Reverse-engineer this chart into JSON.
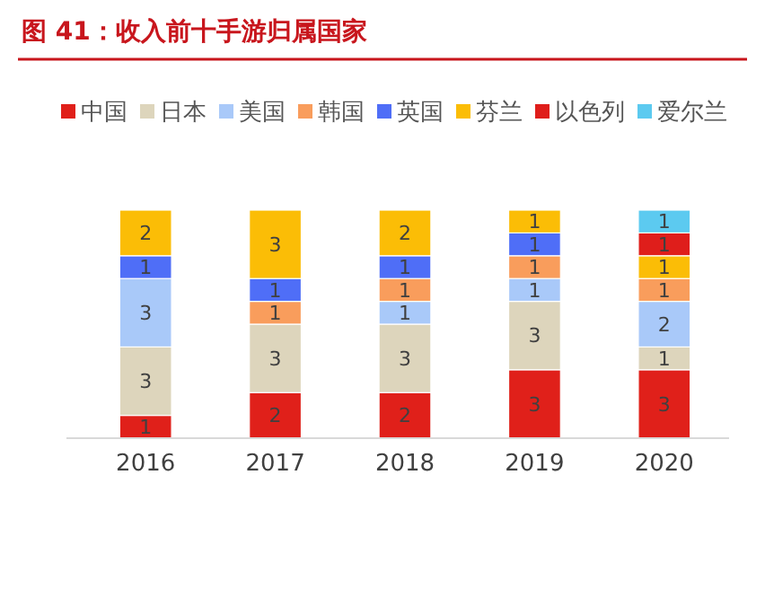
{
  "chart_data": {
    "type": "bar",
    "title": "图 41：收入前十手游归属国家",
    "stacked": true,
    "data_labels": true,
    "legend": "top",
    "grid": false,
    "categories": [
      "2016",
      "2017",
      "2018",
      "2019",
      "2020"
    ],
    "series": [
      {
        "name": "中国",
        "color": "#e0201a",
        "values": [
          1,
          2,
          2,
          3,
          3
        ]
      },
      {
        "name": "日本",
        "color": "#ddd5bc",
        "values": [
          3,
          3,
          3,
          3,
          1
        ]
      },
      {
        "name": "美国",
        "color": "#a9c9f9",
        "values": [
          3,
          null,
          1,
          1,
          2
        ]
      },
      {
        "name": "韩国",
        "color": "#f99d5c",
        "values": [
          null,
          1,
          1,
          1,
          1
        ]
      },
      {
        "name": "英国",
        "color": "#4f6ef7",
        "values": [
          1,
          1,
          1,
          1,
          null
        ]
      },
      {
        "name": "芬兰",
        "color": "#fbbd06",
        "values": [
          2,
          3,
          2,
          1,
          1
        ]
      },
      {
        "name": "以色列",
        "color": "#df1e1b",
        "values": [
          null,
          null,
          null,
          null,
          1
        ]
      },
      {
        "name": "爱尔兰",
        "color": "#5ccaf0",
        "values": [
          null,
          null,
          null,
          null,
          1
        ]
      }
    ]
  }
}
